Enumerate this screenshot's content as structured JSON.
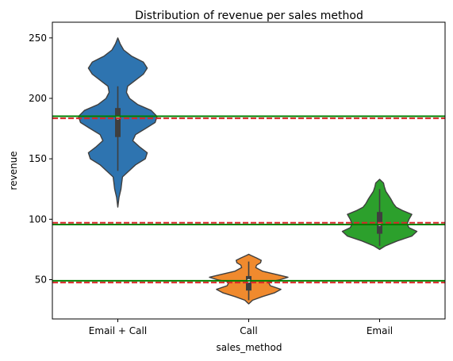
{
  "chart_data": {
    "type": "violin",
    "title": "Distribution of revenue per sales method",
    "xlabel": "sales_method",
    "ylabel": "revenue",
    "ylim": [
      17.5,
      263
    ],
    "yticks": [
      50,
      100,
      150,
      200,
      250
    ],
    "categories": [
      "Email + Call",
      "Call",
      "Email"
    ],
    "series": [
      {
        "category": "Email + Call",
        "color": "#2e74b0",
        "min": 110,
        "max": 250,
        "q1": 168,
        "median": 184,
        "q3": 192,
        "whisker_low": 140,
        "whisker_high": 210,
        "density": [
          [
            110,
            0.0
          ],
          [
            118,
            0.03
          ],
          [
            125,
            0.08
          ],
          [
            130,
            0.1
          ],
          [
            135,
            0.12
          ],
          [
            145,
            0.45
          ],
          [
            150,
            0.7
          ],
          [
            155,
            0.75
          ],
          [
            160,
            0.55
          ],
          [
            165,
            0.38
          ],
          [
            170,
            0.45
          ],
          [
            175,
            0.7
          ],
          [
            180,
            0.95
          ],
          [
            185,
            1.0
          ],
          [
            190,
            0.85
          ],
          [
            195,
            0.5
          ],
          [
            200,
            0.3
          ],
          [
            205,
            0.22
          ],
          [
            210,
            0.25
          ],
          [
            215,
            0.45
          ],
          [
            220,
            0.65
          ],
          [
            225,
            0.75
          ],
          [
            230,
            0.65
          ],
          [
            235,
            0.35
          ],
          [
            240,
            0.15
          ],
          [
            245,
            0.06
          ],
          [
            250,
            0.0
          ]
        ]
      },
      {
        "category": "Call",
        "color": "#f08a2e",
        "min": 30,
        "max": 71,
        "q1": 41,
        "median": 49,
        "q3": 53,
        "whisker_low": 33,
        "whisker_high": 65,
        "density": [
          [
            30,
            0.0
          ],
          [
            33,
            0.1
          ],
          [
            36,
            0.35
          ],
          [
            39,
            0.65
          ],
          [
            42,
            0.82
          ],
          [
            45,
            0.55
          ],
          [
            48,
            0.5
          ],
          [
            50,
            0.8
          ],
          [
            52,
            1.0
          ],
          [
            54,
            0.75
          ],
          [
            57,
            0.35
          ],
          [
            60,
            0.18
          ],
          [
            62,
            0.2
          ],
          [
            64,
            0.3
          ],
          [
            66,
            0.32
          ],
          [
            68,
            0.2
          ],
          [
            70,
            0.06
          ],
          [
            71,
            0.0
          ]
        ]
      },
      {
        "category": "Email",
        "color": "#2ca02c",
        "min": 75,
        "max": 133,
        "q1": 88,
        "median": 96,
        "q3": 106,
        "whisker_low": 78,
        "whisker_high": 125,
        "density": [
          [
            75,
            0.0
          ],
          [
            78,
            0.15
          ],
          [
            82,
            0.45
          ],
          [
            86,
            0.82
          ],
          [
            90,
            0.95
          ],
          [
            93,
            0.75
          ],
          [
            96,
            0.7
          ],
          [
            100,
            0.75
          ],
          [
            104,
            0.82
          ],
          [
            107,
            0.6
          ],
          [
            110,
            0.42
          ],
          [
            113,
            0.35
          ],
          [
            117,
            0.28
          ],
          [
            120,
            0.22
          ],
          [
            123,
            0.16
          ],
          [
            127,
            0.12
          ],
          [
            130,
            0.1
          ],
          [
            133,
            0.0
          ]
        ]
      }
    ],
    "reference_lines": [
      {
        "value": 185.2,
        "color": "#008000",
        "style": "solid"
      },
      {
        "value": 183.5,
        "color": "#d62728",
        "style": "dashed"
      },
      {
        "value": 95.6,
        "color": "#008000",
        "style": "solid"
      },
      {
        "value": 97.1,
        "color": "#d62728",
        "style": "dashed"
      },
      {
        "value": 49.1,
        "color": "#008000",
        "style": "solid"
      },
      {
        "value": 47.6,
        "color": "#d62728",
        "style": "dashed"
      }
    ],
    "grid": false,
    "legend": "none"
  }
}
